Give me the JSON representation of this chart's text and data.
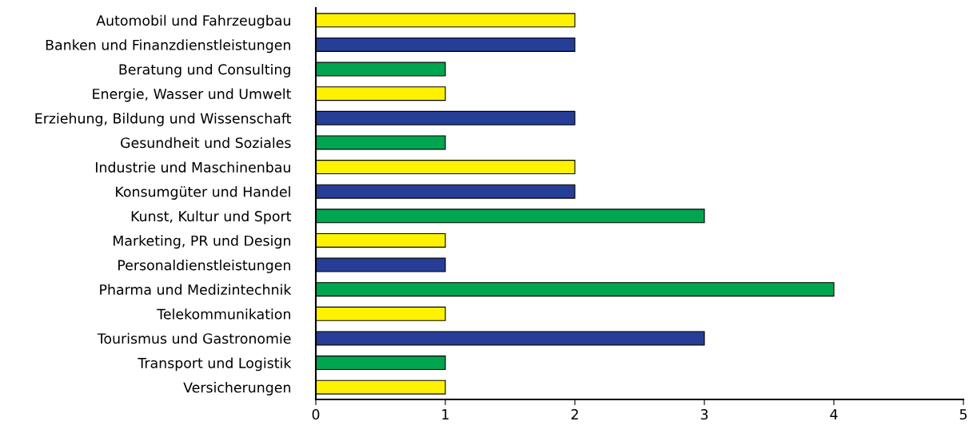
{
  "chart_data": {
    "type": "bar",
    "orientation": "horizontal",
    "categories": [
      "Automobil und Fahrzeugbau",
      "Banken und Finanzdienstleistungen",
      "Beratung und Consulting",
      "Energie, Wasser und Umwelt",
      "Erziehung, Bildung und Wissenschaft",
      "Gesundheit und Soziales",
      "Industrie und Maschinenbau",
      "Konsumgüter und Handel",
      "Kunst, Kultur und Sport",
      "Marketing, PR und Design",
      "Personaldienstleistungen",
      "Pharma und Medizintechnik",
      "Telekommunikation",
      "Tourismus und Gastronomie",
      "Transport und Logistik",
      "Versicherungen"
    ],
    "values": [
      2,
      2,
      1,
      1,
      2,
      1,
      2,
      2,
      3,
      1,
      1,
      4,
      1,
      3,
      1,
      1
    ],
    "colors": [
      "#fff200",
      "#263e97",
      "#00a54f",
      "#fff200",
      "#263e97",
      "#00a54f",
      "#fff200",
      "#263e97",
      "#00a54f",
      "#fff200",
      "#263e97",
      "#00a54f",
      "#fff200",
      "#263e97",
      "#00a54f",
      "#fff200"
    ],
    "xlim": [
      0,
      5
    ],
    "xticks": [
      0,
      1,
      2,
      3,
      4,
      5
    ],
    "grid": false
  }
}
